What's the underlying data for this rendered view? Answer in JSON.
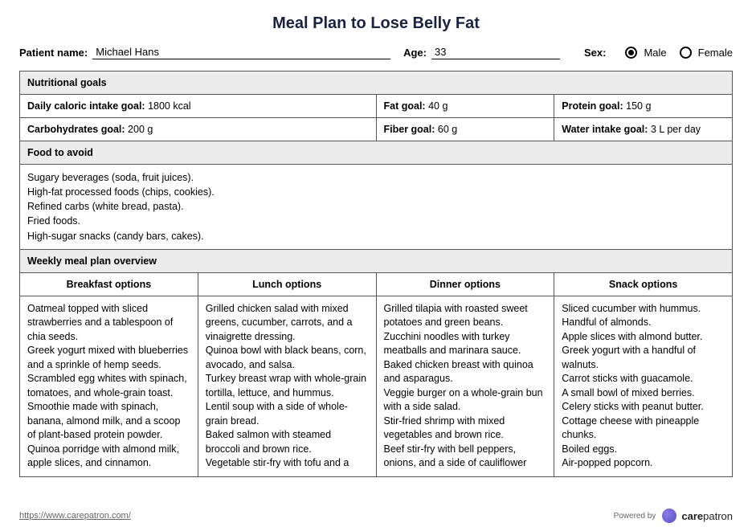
{
  "title": "Meal Plan to Lose Belly Fat",
  "patient": {
    "name_label": "Patient name:",
    "name_value": "Michael Hans",
    "age_label": "Age:",
    "age_value": "33",
    "sex_label": "Sex:",
    "male_label": "Male",
    "female_label": "Female",
    "sex_selected": "male"
  },
  "sections": {
    "nutritional_goals_header": "Nutritional goals",
    "food_to_avoid_header": "Food to avoid",
    "weekly_overview_header": "Weekly meal plan overview"
  },
  "goals": {
    "caloric": {
      "label": "Daily caloric intake goal:",
      "value": "1800 kcal"
    },
    "fat": {
      "label": "Fat goal:",
      "value": "40 g"
    },
    "protein": {
      "label": "Protein goal:",
      "value": "150 g"
    },
    "carbs": {
      "label": "Carbohydrates goal:",
      "value": "200 g"
    },
    "fiber": {
      "label": "Fiber goal:",
      "value": "60 g"
    },
    "water": {
      "label": "Water intake goal:",
      "value": "3 L per day"
    }
  },
  "food_to_avoid": "Sugary beverages (soda, fruit juices).\nHigh-fat processed foods (chips, cookies).\nRefined carbs (white bread, pasta).\nFried foods.\nHigh-sugar snacks (candy bars, cakes).",
  "meal_columns": {
    "breakfast": "Breakfast options",
    "lunch": "Lunch options",
    "dinner": "Dinner options",
    "snack": "Snack options"
  },
  "meals": {
    "breakfast": "Oatmeal topped with sliced strawberries and a tablespoon of chia seeds.\nGreek yogurt mixed with blueberries and a sprinkle of hemp seeds.\nScrambled egg whites with spinach, tomatoes, and whole-grain toast.\nSmoothie made with spinach, banana, almond milk, and a scoop of plant-based protein powder.\nQuinoa porridge with almond milk, apple slices, and cinnamon.",
    "lunch": "Grilled chicken salad with mixed greens, cucumber, carrots, and a vinaigrette dressing.\nQuinoa bowl with black beans, corn, avocado, and salsa.\nTurkey breast wrap with whole-grain tortilla, lettuce, and hummus.\nLentil soup with a side of whole-grain bread.\nBaked salmon with steamed broccoli and brown rice.\nVegetable stir-fry with tofu and a",
    "dinner": "Grilled tilapia with roasted sweet potatoes and green beans.\nZucchini noodles with turkey meatballs and marinara sauce.\nBaked chicken breast with quinoa and asparagus.\nVeggie burger on a whole-grain bun with a side salad.\nStir-fried shrimp with mixed vegetables and brown rice.\nBeef stir-fry with bell peppers, onions, and a side of cauliflower",
    "snack": "Sliced cucumber with hummus.\nHandful of almonds.\nApple slices with almond butter.\nGreek yogurt with a handful of walnuts.\nCarrot sticks with guacamole.\nA small bowl of mixed berries.\nCelery sticks with peanut butter.\nCottage cheese with pineapple chunks.\nBoiled eggs.\nAir-popped popcorn."
  },
  "footer": {
    "url": "https://www.carepatron.com/",
    "powered_by": "Powered by",
    "brand_bold": "care",
    "brand_rest": "patron"
  }
}
